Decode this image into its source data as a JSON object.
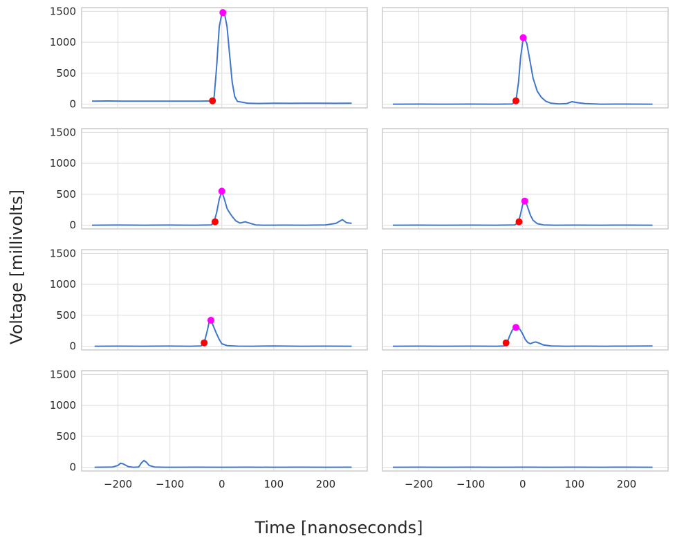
{
  "figure": {
    "xlabel": "Time [nanoseconds]",
    "ylabel": "Voltage [millivolts]"
  },
  "colors": {
    "line": "#3e76cb",
    "onset_marker": "#ff0000",
    "peak_marker": "#ff00ff",
    "grid": "#dcdcdc",
    "frame": "#cccccc"
  },
  "chart_data": [
    {
      "type": "line",
      "xlim": [
        -270,
        280
      ],
      "ylim": [
        -60,
        1560
      ],
      "xticks": [
        -200,
        -100,
        0,
        100,
        200
      ],
      "yticks": [
        0,
        500,
        1000,
        1500
      ],
      "grid": true,
      "x": [
        -250,
        -220,
        -190,
        -160,
        -130,
        -100,
        -70,
        -40,
        -25,
        -20,
        -15,
        -10,
        -5,
        0,
        5,
        10,
        15,
        20,
        25,
        30,
        40,
        50,
        70,
        100,
        130,
        160,
        190,
        220,
        250
      ],
      "y": [
        50,
        52,
        50,
        48,
        50,
        48,
        48,
        50,
        52,
        55,
        100,
        600,
        1250,
        1460,
        1470,
        1250,
        800,
        350,
        120,
        45,
        30,
        15,
        12,
        15,
        14,
        15,
        15,
        14,
        15
      ],
      "onset": {
        "x": -18,
        "y": 55
      },
      "peak": {
        "x": 2,
        "y": 1480
      }
    },
    {
      "type": "line",
      "xlim": [
        -270,
        280
      ],
      "ylim": [
        -60,
        1560
      ],
      "xticks": [
        -200,
        -100,
        0,
        100,
        200
      ],
      "yticks": [
        0,
        500,
        1000,
        1500
      ],
      "grid": true,
      "x": [
        -250,
        -200,
        -150,
        -100,
        -50,
        -20,
        -13,
        -8,
        -4,
        0,
        3,
        8,
        14,
        20,
        28,
        36,
        45,
        55,
        70,
        85,
        95,
        105,
        120,
        150,
        200,
        250
      ],
      "y": [
        0,
        2,
        0,
        2,
        0,
        3,
        55,
        350,
        750,
        1000,
        1070,
        980,
        700,
        420,
        210,
        110,
        45,
        15,
        5,
        10,
        40,
        25,
        10,
        0,
        2,
        0
      ],
      "onset": {
        "x": -13,
        "y": 55
      },
      "peak": {
        "x": 1,
        "y": 1075
      }
    },
    {
      "type": "line",
      "xlim": [
        -270,
        280
      ],
      "ylim": [
        -60,
        1560
      ],
      "xticks": [
        -200,
        -100,
        0,
        100,
        200
      ],
      "yticks": [
        0,
        500,
        1000,
        1500
      ],
      "grid": true,
      "x": [
        -250,
        -200,
        -150,
        -100,
        -50,
        -20,
        -15,
        -10,
        -5,
        0,
        5,
        10,
        15,
        20,
        27,
        35,
        45,
        55,
        65,
        80,
        120,
        160,
        200,
        220,
        232,
        240,
        250
      ],
      "y": [
        0,
        3,
        0,
        3,
        0,
        5,
        55,
        200,
        420,
        545,
        420,
        270,
        200,
        140,
        70,
        35,
        55,
        30,
        5,
        0,
        2,
        0,
        5,
        30,
        90,
        40,
        30
      ],
      "onset": {
        "x": -13,
        "y": 55
      },
      "peak": {
        "x": 0,
        "y": 550
      }
    },
    {
      "type": "line",
      "xlim": [
        -270,
        280
      ],
      "ylim": [
        -60,
        1560
      ],
      "xticks": [
        -200,
        -100,
        0,
        100,
        200
      ],
      "yticks": [
        0,
        500,
        1000,
        1500
      ],
      "grid": true,
      "x": [
        -250,
        -200,
        -150,
        -100,
        -50,
        -15,
        -8,
        -4,
        0,
        3,
        6,
        10,
        15,
        20,
        28,
        40,
        60,
        100,
        150,
        200,
        250
      ],
      "y": [
        0,
        2,
        0,
        2,
        0,
        5,
        55,
        180,
        330,
        390,
        380,
        280,
        160,
        80,
        25,
        5,
        0,
        2,
        0,
        2,
        0
      ],
      "onset": {
        "x": -7,
        "y": 55
      },
      "peak": {
        "x": 4,
        "y": 390
      }
    },
    {
      "type": "line",
      "xlim": [
        -270,
        280
      ],
      "ylim": [
        -60,
        1560
      ],
      "xticks": [
        -200,
        -100,
        0,
        100,
        200
      ],
      "yticks": [
        0,
        500,
        1000,
        1500
      ],
      "grid": true,
      "x": [
        -245,
        -200,
        -150,
        -100,
        -60,
        -40,
        -34,
        -28,
        -24,
        -20,
        -15,
        -10,
        -5,
        0,
        10,
        30,
        60,
        100,
        150,
        200,
        250
      ],
      "y": [
        0,
        2,
        0,
        3,
        0,
        5,
        55,
        250,
        410,
        400,
        300,
        200,
        110,
        40,
        10,
        2,
        0,
        5,
        0,
        2,
        0
      ],
      "onset": {
        "x": -34,
        "y": 55
      },
      "peak": {
        "x": -21,
        "y": 420
      }
    },
    {
      "type": "line",
      "xlim": [
        -270,
        280
      ],
      "ylim": [
        -60,
        1560
      ],
      "xticks": [
        -200,
        -100,
        0,
        100,
        200
      ],
      "yticks": [
        0,
        500,
        1000,
        1500
      ],
      "grid": true,
      "x": [
        -250,
        -200,
        -150,
        -100,
        -50,
        -35,
        -30,
        -25,
        -20,
        -15,
        -10,
        -5,
        0,
        5,
        10,
        15,
        20,
        25,
        32,
        40,
        55,
        80,
        120,
        160,
        200,
        250
      ],
      "y": [
        0,
        2,
        0,
        2,
        0,
        5,
        55,
        170,
        260,
        300,
        310,
        270,
        200,
        110,
        60,
        40,
        60,
        70,
        50,
        20,
        5,
        0,
        2,
        0,
        2,
        5
      ],
      "onset": {
        "x": -32,
        "y": 55
      },
      "peak": {
        "x": -13,
        "y": 305
      }
    },
    {
      "type": "line",
      "xlim": [
        -270,
        280
      ],
      "ylim": [
        -60,
        1560
      ],
      "xticks": [
        -200,
        -100,
        0,
        100,
        200
      ],
      "yticks": [
        0,
        500,
        1000,
        1500
      ],
      "grid": true,
      "x": [
        -245,
        -230,
        -210,
        -200,
        -195,
        -190,
        -180,
        -170,
        -160,
        -155,
        -150,
        -145,
        -140,
        -130,
        -110,
        -50,
        0,
        50,
        100,
        150,
        200,
        250
      ],
      "y": [
        0,
        2,
        5,
        30,
        65,
        55,
        10,
        0,
        5,
        70,
        110,
        80,
        30,
        5,
        0,
        2,
        0,
        2,
        0,
        2,
        0,
        2
      ]
    },
    {
      "type": "line",
      "xlim": [
        -270,
        280
      ],
      "ylim": [
        -60,
        1560
      ],
      "xticks": [
        -200,
        -100,
        0,
        100,
        200
      ],
      "yticks": [
        0,
        500,
        1000,
        1500
      ],
      "grid": true,
      "x": [
        -250,
        -200,
        -150,
        -100,
        -50,
        0,
        50,
        100,
        150,
        200,
        250
      ],
      "y": [
        0,
        2,
        0,
        2,
        0,
        2,
        0,
        2,
        0,
        2,
        0
      ]
    }
  ]
}
